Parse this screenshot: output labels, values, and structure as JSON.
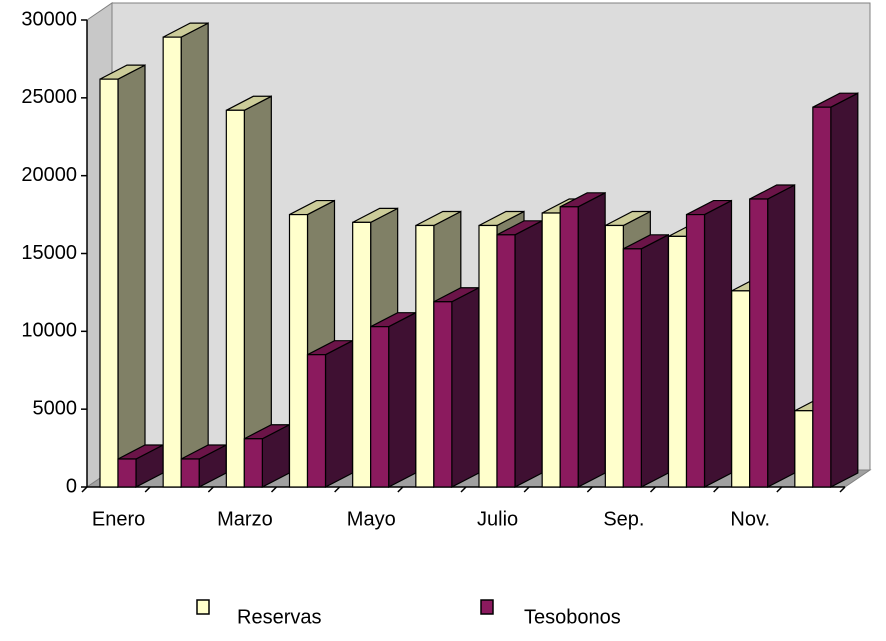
{
  "chart_data": {
    "type": "bar3d",
    "categories": [
      "Enero",
      null,
      "Marzo",
      null,
      "Mayo",
      null,
      "Julio",
      null,
      "Sep.",
      null,
      "Nov.",
      null
    ],
    "series": [
      {
        "name": "Reservas",
        "color": "#ffffcc",
        "side_color": "#808066",
        "top_color": "#cccc99",
        "values": [
          26200,
          28900,
          24200,
          17500,
          17000,
          16800,
          16800,
          17600,
          16800,
          16100,
          12600,
          4900
        ]
      },
      {
        "name": "Tesobonos",
        "color": "#8b1a5e",
        "side_color": "#3f1032",
        "top_color": "#6b1448",
        "values": [
          1800,
          1800,
          3100,
          8500,
          10300,
          11900,
          16200,
          18000,
          15300,
          17500,
          18500,
          24400
        ]
      }
    ],
    "ylim": [
      0,
      30000
    ],
    "yticks": [
      0,
      5000,
      10000,
      15000,
      20000,
      25000,
      30000
    ],
    "legend": "bottom"
  }
}
